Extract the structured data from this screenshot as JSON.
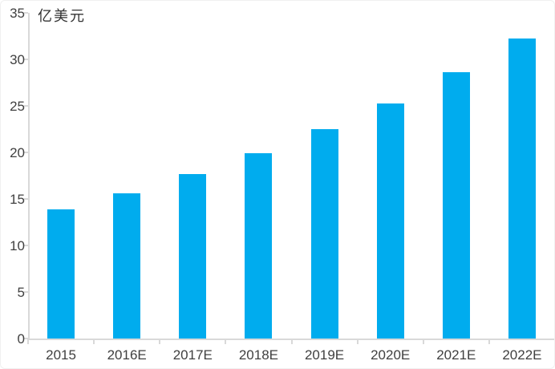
{
  "chart_data": {
    "type": "bar",
    "title": "",
    "unit_label": "亿美元",
    "categories": [
      "2015",
      "2016E",
      "2017E",
      "2018E",
      "2019E",
      "2020E",
      "2021E",
      "2022E"
    ],
    "values": [
      13.9,
      15.6,
      17.7,
      19.9,
      22.5,
      25.3,
      28.6,
      32.2
    ],
    "xlabel": "",
    "ylabel": "亿美元",
    "ylim": [
      0,
      35
    ],
    "yticks": [
      0,
      5,
      10,
      15,
      20,
      25,
      30,
      35
    ],
    "grid": false,
    "legend": null,
    "colors": {
      "bar": "#00ACEE",
      "axis": "#d9d9d9",
      "text": "#404040"
    }
  }
}
